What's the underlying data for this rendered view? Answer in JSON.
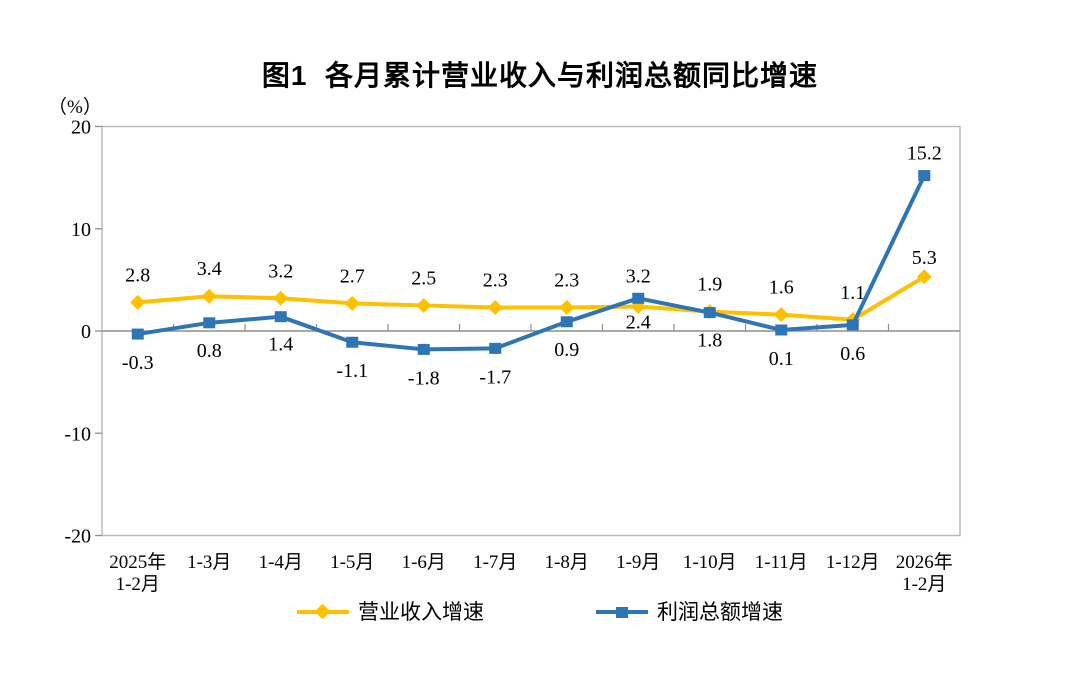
{
  "chart_data": {
    "type": "line",
    "title": "图1  各月累计营业收入与利润总额同比增速",
    "y_unit": "（%）",
    "categories": [
      [
        "2025年",
        "1-2月"
      ],
      [
        "1-3月"
      ],
      [
        "1-4月"
      ],
      [
        "1-5月"
      ],
      [
        "1-6月"
      ],
      [
        "1-7月"
      ],
      [
        "1-8月"
      ],
      [
        "1-9月"
      ],
      [
        "1-10月"
      ],
      [
        "1-11月"
      ],
      [
        "1-12月"
      ],
      [
        "2026年",
        "1-2月"
      ]
    ],
    "series": [
      {
        "name": "营业收入增速",
        "color": "#FFC000",
        "marker": "diamond",
        "values": [
          2.8,
          3.4,
          3.2,
          2.7,
          2.5,
          2.3,
          2.3,
          2.4,
          1.9,
          1.6,
          1.1,
          5.3
        ],
        "label_dy": [
          -21,
          -21,
          -21,
          -21,
          -21,
          -21,
          -21,
          22,
          -21,
          -21,
          -21,
          -13
        ]
      },
      {
        "name": "利润总额增速",
        "color": "#2E75B6",
        "marker": "square",
        "values": [
          -0.3,
          0.8,
          1.4,
          -1.1,
          -1.8,
          -1.7,
          0.9,
          3.2,
          1.8,
          0.1,
          0.6,
          15.2
        ],
        "label_dy": [
          35,
          34,
          34,
          35,
          35,
          35,
          34,
          -16,
          34,
          35,
          35,
          -16
        ]
      }
    ],
    "y_axis": {
      "min": -20,
      "max": 20,
      "step": 10,
      "tick_labels": [
        "20",
        "10",
        "0",
        "-10",
        "-20"
      ]
    },
    "legend_position": "bottom",
    "grid": false
  },
  "style": {
    "border_color": "#b9b7b7",
    "zero_line_color": "#8f8d8d",
    "tick_color": "#8f8d8d",
    "label_color": "#000000",
    "background": "#ffffff"
  }
}
